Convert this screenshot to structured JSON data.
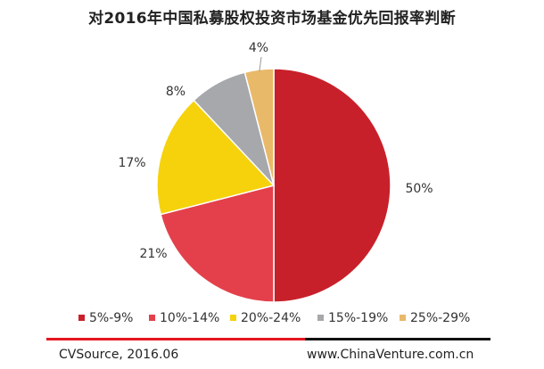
{
  "title": "对2016年中国私募股权投资市场基金优先回报率判断",
  "chart_data": {
    "type": "pie",
    "title": "对2016年中国私募股权投资市场基金优先回报率判断",
    "slices": [
      {
        "label": "5%-9%",
        "value": 50,
        "value_label": "50%",
        "color": "#c8202a"
      },
      {
        "label": "10%-14%",
        "value": 21,
        "value_label": "21%",
        "color": "#e4404b"
      },
      {
        "label": "20%-24%",
        "value": 17,
        "value_label": "17%",
        "color": "#f5d20c"
      },
      {
        "label": "15%-19%",
        "value": 8,
        "value_label": "8%",
        "color": "#a6a8ab"
      },
      {
        "label": "25%-29%",
        "value": 4,
        "value_label": "4%",
        "color": "#e9b96a"
      }
    ],
    "legend_position": "bottom"
  },
  "footer": {
    "source": "CVSource, 2016.06",
    "url": "www.ChinaVenture.com.cn"
  }
}
